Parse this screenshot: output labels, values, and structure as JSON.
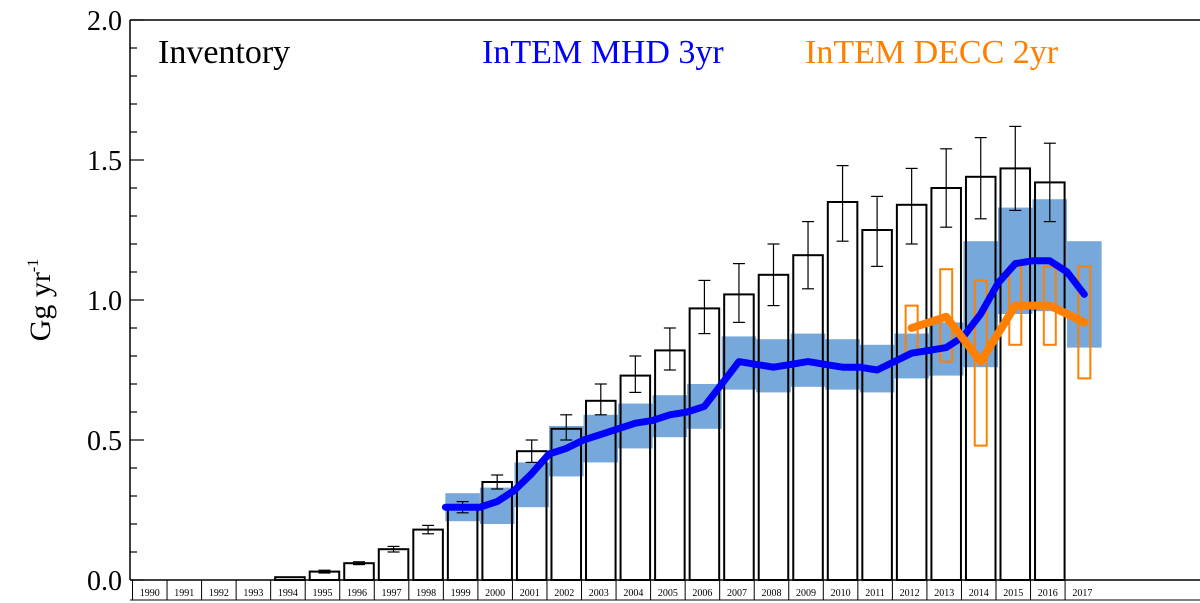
{
  "chart_data": {
    "type": "bar",
    "ylabel": "Gg yr",
    "ylabel_sup": "-1",
    "ylim": [
      0.0,
      2.0
    ],
    "yticks": [
      "0.0",
      "0.5",
      "1.0",
      "1.5",
      "2.0"
    ],
    "categories": [
      "1990",
      "1991",
      "1992",
      "1993",
      "1994",
      "1995",
      "1996",
      "1997",
      "1998",
      "1999",
      "2000",
      "2001",
      "2002",
      "2003",
      "2004",
      "2005",
      "2006",
      "2007",
      "2008",
      "2009",
      "2010",
      "2011",
      "2012",
      "2013",
      "2014",
      "2015",
      "2016",
      "2017"
    ],
    "inventory": {
      "name": "Inventory",
      "color": "#000000",
      "values": [
        0.0,
        0.0,
        0.0,
        0.0,
        0.01,
        0.03,
        0.06,
        0.11,
        0.18,
        0.26,
        0.35,
        0.46,
        0.54,
        0.64,
        0.73,
        0.82,
        0.97,
        1.02,
        1.09,
        1.16,
        1.35,
        1.25,
        1.34,
        1.4,
        1.44,
        1.47,
        1.42,
        null
      ],
      "err_low": [
        null,
        null,
        null,
        null,
        0.005,
        0.025,
        0.055,
        0.1,
        0.165,
        0.24,
        0.325,
        0.42,
        0.5,
        0.59,
        0.67,
        0.75,
        0.88,
        0.92,
        0.98,
        1.04,
        1.21,
        1.12,
        1.2,
        1.26,
        1.29,
        1.32,
        1.28,
        null
      ],
      "err_high": [
        null,
        null,
        null,
        null,
        0.015,
        0.035,
        0.065,
        0.12,
        0.195,
        0.28,
        0.375,
        0.5,
        0.59,
        0.7,
        0.8,
        0.9,
        1.07,
        1.13,
        1.2,
        1.28,
        1.48,
        1.37,
        1.47,
        1.54,
        1.58,
        1.62,
        1.56,
        null
      ]
    },
    "series": [
      {
        "name": "InTEM MHD 3yr",
        "color": "#0000ff",
        "band_color": "#6fa3d9",
        "x": [
          1999.0,
          1999.5,
          2000.0,
          2000.5,
          2001.0,
          2001.5,
          2002.0,
          2002.5,
          2003.0,
          2003.5,
          2004.0,
          2004.5,
          2005.0,
          2005.5,
          2006.0,
          2006.5,
          2007.0,
          2007.5,
          2008.0,
          2008.5,
          2009.0,
          2009.5,
          2010.0,
          2010.5,
          2011.0,
          2011.5,
          2012.0,
          2012.5,
          2013.0,
          2013.5,
          2014.0,
          2014.5,
          2015.0,
          2015.5,
          2016.0,
          2016.5,
          2017.0,
          2017.5
        ],
        "y": [
          0.26,
          0.26,
          0.26,
          0.28,
          0.32,
          0.38,
          0.45,
          0.47,
          0.5,
          0.52,
          0.54,
          0.56,
          0.57,
          0.59,
          0.6,
          0.62,
          0.7,
          0.78,
          0.77,
          0.76,
          0.77,
          0.78,
          0.77,
          0.76,
          0.76,
          0.75,
          0.78,
          0.81,
          0.82,
          0.83,
          0.87,
          0.95,
          1.06,
          1.13,
          1.14,
          1.14,
          1.1,
          1.02
        ],
        "bands": [
          {
            "x0": 1999.0,
            "x1": 2000.0,
            "low": 0.21,
            "high": 0.31
          },
          {
            "x0": 2000.0,
            "x1": 2001.0,
            "low": 0.2,
            "high": 0.33
          },
          {
            "x0": 2001.0,
            "x1": 2002.0,
            "low": 0.26,
            "high": 0.42
          },
          {
            "x0": 2002.0,
            "x1": 2003.0,
            "low": 0.37,
            "high": 0.55
          },
          {
            "x0": 2003.0,
            "x1": 2004.0,
            "low": 0.42,
            "high": 0.59
          },
          {
            "x0": 2004.0,
            "x1": 2005.0,
            "low": 0.47,
            "high": 0.63
          },
          {
            "x0": 2005.0,
            "x1": 2006.0,
            "low": 0.51,
            "high": 0.66
          },
          {
            "x0": 2006.0,
            "x1": 2007.0,
            "low": 0.54,
            "high": 0.7
          },
          {
            "x0": 2007.0,
            "x1": 2008.0,
            "low": 0.68,
            "high": 0.87
          },
          {
            "x0": 2008.0,
            "x1": 2009.0,
            "low": 0.67,
            "high": 0.86
          },
          {
            "x0": 2009.0,
            "x1": 2010.0,
            "low": 0.69,
            "high": 0.88
          },
          {
            "x0": 2010.0,
            "x1": 2011.0,
            "low": 0.68,
            "high": 0.86
          },
          {
            "x0": 2011.0,
            "x1": 2012.0,
            "low": 0.67,
            "high": 0.84
          },
          {
            "x0": 2012.0,
            "x1": 2013.0,
            "low": 0.72,
            "high": 0.88
          },
          {
            "x0": 2013.0,
            "x1": 2014.0,
            "low": 0.73,
            "high": 0.92
          },
          {
            "x0": 2014.0,
            "x1": 2015.0,
            "low": 0.76,
            "high": 1.21
          },
          {
            "x0": 2015.0,
            "x1": 2016.0,
            "low": 0.95,
            "high": 1.33
          },
          {
            "x0": 2016.0,
            "x1": 2017.0,
            "low": 0.96,
            "high": 1.36
          },
          {
            "x0": 2017.0,
            "x1": 2018.0,
            "low": 0.83,
            "high": 1.21
          }
        ]
      },
      {
        "name": "InTEM DECC 2yr",
        "color": "#ff8000",
        "x": [
          2012.5,
          2013.5,
          2014.5,
          2015.5,
          2016.5,
          2017.5
        ],
        "y": [
          0.9,
          0.94,
          0.78,
          0.98,
          0.98,
          0.92
        ],
        "boxes": [
          {
            "x": 2012.5,
            "low": 0.81,
            "high": 0.98
          },
          {
            "x": 2013.5,
            "low": 0.78,
            "high": 1.11
          },
          {
            "x": 2014.5,
            "low": 0.48,
            "high": 1.07
          },
          {
            "x": 2015.5,
            "low": 0.84,
            "high": 1.12
          },
          {
            "x": 2016.5,
            "low": 0.84,
            "high": 1.12
          },
          {
            "x": 2017.5,
            "low": 0.72,
            "high": 1.12
          }
        ]
      }
    ],
    "legend_placement": "top"
  }
}
